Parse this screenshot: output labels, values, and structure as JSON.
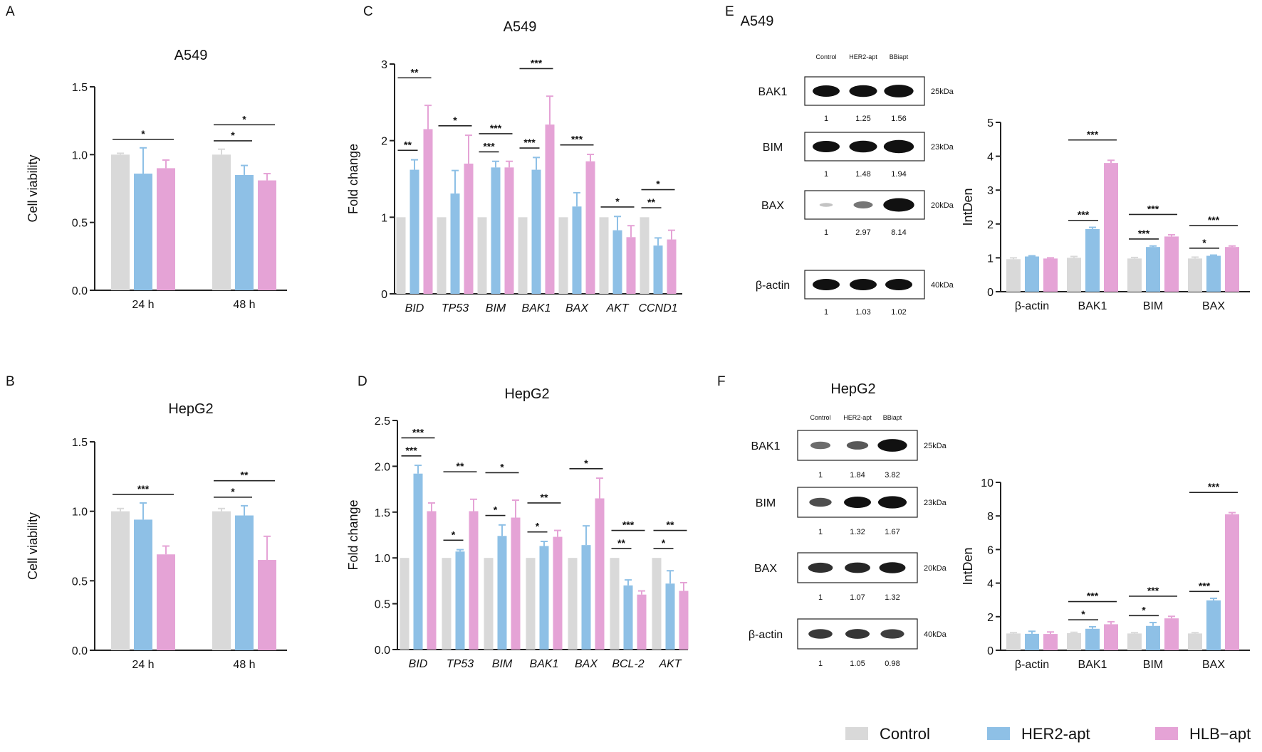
{
  "colors": {
    "control": "#d9d9d9",
    "her2": "#8ec0e6",
    "hlb": "#e5a3d6",
    "axis": "#222222"
  },
  "legend": [
    {
      "key": "control",
      "label": "Control",
      "color": "#d9d9d9"
    },
    {
      "key": "her2",
      "label": "HER2-apt",
      "color": "#8ec0e6"
    },
    {
      "key": "hlb",
      "label": "HLB−apt",
      "color": "#e5a3d6"
    }
  ],
  "panels": {
    "A": "A",
    "B": "B",
    "C": "C",
    "D": "D",
    "E": "E",
    "F": "F"
  },
  "chart_data": [
    {
      "id": "A",
      "type": "bar",
      "title": "A549",
      "ylabel": "Cell viability",
      "xlabel": "",
      "ylim": [
        0,
        1.5
      ],
      "yticks": [
        "0.0",
        "0.5",
        "1.0",
        "1.5"
      ],
      "categories": [
        "24 h",
        "48 h"
      ],
      "series": [
        {
          "name": "Control",
          "values": [
            1.0,
            1.0
          ],
          "errors": [
            0.01,
            0.04
          ]
        },
        {
          "name": "HER2-apt",
          "values": [
            0.86,
            0.85
          ],
          "errors": [
            0.19,
            0.07
          ]
        },
        {
          "name": "HLB−apt",
          "values": [
            0.9,
            0.81
          ],
          "errors": [
            0.06,
            0.05
          ]
        }
      ],
      "significance": [
        {
          "category": 0,
          "from": 0,
          "to": 2,
          "level": 0,
          "label": "*"
        },
        {
          "category": 1,
          "from": 0,
          "to": 1,
          "level": 0,
          "label": "*"
        },
        {
          "category": 1,
          "from": 0,
          "to": 2,
          "level": 1,
          "label": "*"
        }
      ]
    },
    {
      "id": "B",
      "type": "bar",
      "title": "HepG2",
      "ylabel": "Cell viability",
      "xlabel": "",
      "ylim": [
        0,
        1.5
      ],
      "yticks": [
        "0.0",
        "0.5",
        "1.0",
        "1.5"
      ],
      "categories": [
        "24 h",
        "48 h"
      ],
      "series": [
        {
          "name": "Control",
          "values": [
            1.0,
            1.0
          ],
          "errors": [
            0.02,
            0.02
          ]
        },
        {
          "name": "HER2-apt",
          "values": [
            0.94,
            0.97
          ],
          "errors": [
            0.12,
            0.07
          ]
        },
        {
          "name": "HLB−apt",
          "values": [
            0.69,
            0.65
          ],
          "errors": [
            0.06,
            0.17
          ]
        }
      ],
      "significance": [
        {
          "category": 0,
          "from": 0,
          "to": 2,
          "level": 0,
          "label": "***"
        },
        {
          "category": 1,
          "from": 0,
          "to": 1,
          "level": 0,
          "label": "*"
        },
        {
          "category": 1,
          "from": 0,
          "to": 2,
          "level": 1,
          "label": "**"
        }
      ]
    },
    {
      "id": "C",
      "type": "bar",
      "title": "A549",
      "ylabel": "Fold change",
      "xlabel": "",
      "ylim": [
        0,
        3
      ],
      "yticks": [
        "0",
        "1",
        "2",
        "3"
      ],
      "italic_categories": true,
      "categories": [
        "BID",
        "TP53",
        "BIM",
        "BAK1",
        "BAX",
        "AKT",
        "CCND1"
      ],
      "series": [
        {
          "name": "Control",
          "values": [
            1,
            1,
            1,
            1,
            1,
            1,
            1
          ],
          "errors": [
            0,
            0,
            0,
            0,
            0,
            0,
            0
          ]
        },
        {
          "name": "HER2-apt",
          "values": [
            1.62,
            1.31,
            1.65,
            1.62,
            1.14,
            0.83,
            0.63
          ],
          "errors": [
            0.13,
            0.3,
            0.08,
            0.16,
            0.18,
            0.18,
            0.1
          ]
        },
        {
          "name": "HLB−apt",
          "values": [
            2.15,
            1.7,
            1.65,
            2.21,
            1.73,
            0.74,
            0.71
          ],
          "errors": [
            0.31,
            0.37,
            0.08,
            0.37,
            0.09,
            0.15,
            0.12
          ]
        }
      ],
      "significance": [
        {
          "category": 0,
          "from": 0,
          "to": 1,
          "level": 0,
          "label": "**"
        },
        {
          "category": 0,
          "from": 0,
          "to": 2,
          "level": 1,
          "label": "**"
        },
        {
          "category": 1,
          "from": 0,
          "to": 2,
          "level": 0,
          "label": "*"
        },
        {
          "category": 2,
          "from": 0,
          "to": 1,
          "level": 0,
          "label": "***"
        },
        {
          "category": 2,
          "from": 0,
          "to": 2,
          "level": 1,
          "label": "***"
        },
        {
          "category": 3,
          "from": 0,
          "to": 1,
          "level": 0,
          "label": "***"
        },
        {
          "category": 3,
          "from": 0,
          "to": 2,
          "level": 1,
          "label": "***"
        },
        {
          "category": 4,
          "from": 0,
          "to": 2,
          "level": 0,
          "label": "***"
        },
        {
          "category": 5,
          "from": 0,
          "to": 2,
          "level": 0,
          "label": "*"
        },
        {
          "category": 6,
          "from": 0,
          "to": 1,
          "level": 0,
          "label": "**"
        },
        {
          "category": 6,
          "from": 0,
          "to": 2,
          "level": 1,
          "label": "*"
        }
      ]
    },
    {
      "id": "D",
      "type": "bar",
      "title": "HepG2",
      "ylabel": "Fold change",
      "xlabel": "",
      "ylim": [
        0,
        2.5
      ],
      "yticks": [
        "0.0",
        "0.5",
        "1.0",
        "1.5",
        "2.0",
        "2.5"
      ],
      "italic_categories": true,
      "categories": [
        "BID",
        "TP53",
        "BIM",
        "BAK1",
        "BAX",
        "BCL-2",
        "AKT"
      ],
      "series": [
        {
          "name": "Control",
          "values": [
            1,
            1,
            1,
            1,
            1,
            1,
            1
          ],
          "errors": [
            0,
            0,
            0,
            0,
            0,
            0,
            0
          ]
        },
        {
          "name": "HER2-apt",
          "values": [
            1.92,
            1.07,
            1.24,
            1.13,
            1.14,
            0.7,
            0.72
          ],
          "errors": [
            0.09,
            0.02,
            0.12,
            0.05,
            0.21,
            0.06,
            0.14
          ]
        },
        {
          "name": "HLB−apt",
          "values": [
            1.51,
            1.51,
            1.44,
            1.23,
            1.65,
            0.6,
            0.64
          ],
          "errors": [
            0.09,
            0.13,
            0.19,
            0.07,
            0.22,
            0.04,
            0.09
          ]
        }
      ],
      "significance": [
        {
          "category": 0,
          "from": 0,
          "to": 1,
          "level": 0,
          "label": "***"
        },
        {
          "category": 0,
          "from": 0,
          "to": 2,
          "level": 1,
          "label": "***"
        },
        {
          "category": 1,
          "from": 0,
          "to": 1,
          "level": 0,
          "label": "*"
        },
        {
          "category": 1,
          "from": 0,
          "to": 2,
          "level": 1,
          "label": "**"
        },
        {
          "category": 2,
          "from": 0,
          "to": 1,
          "level": 0,
          "label": "*"
        },
        {
          "category": 2,
          "from": 0,
          "to": 2,
          "level": 1,
          "label": "*"
        },
        {
          "category": 3,
          "from": 0,
          "to": 1,
          "level": 0,
          "label": "*"
        },
        {
          "category": 3,
          "from": 0,
          "to": 2,
          "level": 1,
          "label": "**"
        },
        {
          "category": 4,
          "from": 0,
          "to": 2,
          "level": 0,
          "label": "*"
        },
        {
          "category": 5,
          "from": 0,
          "to": 1,
          "level": 0,
          "label": "**"
        },
        {
          "category": 5,
          "from": 0,
          "to": 2,
          "level": 1,
          "label": "***"
        },
        {
          "category": 6,
          "from": 0,
          "to": 1,
          "level": 0,
          "label": "*"
        },
        {
          "category": 6,
          "from": 0,
          "to": 2,
          "level": 1,
          "label": "**"
        }
      ]
    },
    {
      "id": "E-quant",
      "type": "bar",
      "title": "",
      "ylabel": "IntDen",
      "xlabel": "",
      "ylim": [
        0,
        5
      ],
      "yticks": [
        "0",
        "1",
        "2",
        "3",
        "4",
        "5"
      ],
      "categories": [
        "β-actin",
        "BAK1",
        "BIM",
        "BAX"
      ],
      "series": [
        {
          "name": "Control",
          "values": [
            0.96,
            1.0,
            0.98,
            0.98
          ],
          "errors": [
            0.04,
            0.04,
            0.03,
            0.04
          ]
        },
        {
          "name": "HER2-apt",
          "values": [
            1.04,
            1.85,
            1.32,
            1.06
          ],
          "errors": [
            0.02,
            0.05,
            0.03,
            0.02
          ]
        },
        {
          "name": "HLB−apt",
          "values": [
            0.98,
            3.8,
            1.63,
            1.32
          ],
          "errors": [
            0.02,
            0.08,
            0.05,
            0.03
          ]
        }
      ],
      "significance": [
        {
          "category": 1,
          "from": 0,
          "to": 1,
          "level": 0,
          "label": "***"
        },
        {
          "category": 1,
          "from": 0,
          "to": 2,
          "level": 1,
          "label": "***"
        },
        {
          "category": 2,
          "from": 0,
          "to": 1,
          "level": 0,
          "label": "***"
        },
        {
          "category": 2,
          "from": 0,
          "to": 2,
          "level": 1,
          "label": "***"
        },
        {
          "category": 3,
          "from": 0,
          "to": 1,
          "level": 0,
          "label": "*"
        },
        {
          "category": 3,
          "from": 0,
          "to": 2,
          "level": 1,
          "label": "***"
        }
      ]
    },
    {
      "id": "F-quant",
      "type": "bar",
      "title": "",
      "ylabel": "IntDen",
      "xlabel": "",
      "ylim": [
        0,
        10
      ],
      "yticks": [
        "0",
        "2",
        "4",
        "6",
        "8",
        "10"
      ],
      "categories": [
        "β-actin",
        "BAK1",
        "BIM",
        "BAX"
      ],
      "series": [
        {
          "name": "Control",
          "values": [
            1.0,
            1.02,
            1.0,
            1.0
          ],
          "errors": [
            0.05,
            0.05,
            0.05,
            0.05
          ]
        },
        {
          "name": "HER2-apt",
          "values": [
            0.98,
            1.28,
            1.45,
            2.97
          ],
          "errors": [
            0.15,
            0.12,
            0.2,
            0.12
          ]
        },
        {
          "name": "HLB−apt",
          "values": [
            0.97,
            1.55,
            1.9,
            8.1
          ],
          "errors": [
            0.12,
            0.15,
            0.12,
            0.1
          ]
        }
      ],
      "significance": [
        {
          "category": 1,
          "from": 0,
          "to": 1,
          "level": 0,
          "label": "*"
        },
        {
          "category": 1,
          "from": 0,
          "to": 2,
          "level": 1,
          "label": "***"
        },
        {
          "category": 2,
          "from": 0,
          "to": 1,
          "level": 0,
          "label": "*"
        },
        {
          "category": 2,
          "from": 0,
          "to": 2,
          "level": 1,
          "label": "***"
        },
        {
          "category": 3,
          "from": 0,
          "to": 1,
          "level": 0,
          "label": "***"
        },
        {
          "category": 3,
          "from": 0,
          "to": 2,
          "level": 1,
          "label": "***"
        }
      ]
    }
  ],
  "blots": {
    "E": {
      "title": "A549",
      "lanes": [
        "Control",
        "HER2-apt",
        "BBiapt"
      ],
      "rows": [
        {
          "label": "BAK1",
          "kda": "25kDa",
          "values": [
            "1",
            "1.25",
            "1.56"
          ],
          "intensity": [
            1.0,
            1.05,
            1.15
          ]
        },
        {
          "label": "BIM",
          "kda": "23kDa",
          "values": [
            "1",
            "1.48",
            "1.94"
          ],
          "intensity": [
            1.0,
            1.05,
            1.2
          ]
        },
        {
          "label": "BAX",
          "kda": "20kDa",
          "values": [
            "1",
            "2.97",
            "8.14"
          ],
          "intensity": [
            0.12,
            0.5,
            1.25
          ]
        },
        {
          "label": "β-actin",
          "kda": "40kDa",
          "values": [
            "1",
            "1.03",
            "1.02"
          ],
          "intensity": [
            1.0,
            1.0,
            1.0
          ]
        }
      ]
    },
    "F": {
      "title": "HepG2",
      "lanes": [
        "Control",
        "HER2-apt",
        "BBiapt"
      ],
      "rows": [
        {
          "label": "BAK1",
          "kda": "25kDa",
          "values": [
            "1",
            "1.84",
            "3.82"
          ],
          "intensity": [
            0.55,
            0.65,
            1.15
          ]
        },
        {
          "label": "BIM",
          "kda": "23kDa",
          "values": [
            "1",
            "1.32",
            "1.67"
          ],
          "intensity": [
            0.7,
            1.0,
            1.1
          ]
        },
        {
          "label": "BAX",
          "kda": "20kDa",
          "values": [
            "1",
            "1.07",
            "1.32"
          ],
          "intensity": [
            0.85,
            0.9,
            0.95
          ]
        },
        {
          "label": "β-actin",
          "kda": "40kDa",
          "values": [
            "1",
            "1.05",
            "0.98"
          ],
          "intensity": [
            0.8,
            0.82,
            0.78
          ]
        }
      ]
    }
  }
}
